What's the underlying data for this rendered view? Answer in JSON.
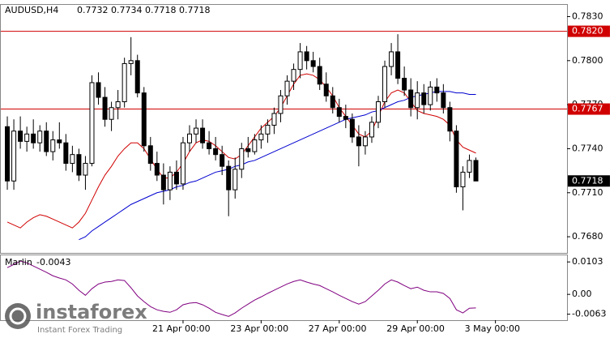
{
  "chart_data": [
    {
      "type": "candlestick",
      "title": "AUDUSD,H4",
      "ohlc": [
        [
          0.7755,
          0.7762,
          0.7712,
          0.7718
        ],
        [
          0.7718,
          0.776,
          0.7712,
          0.7752
        ],
        [
          0.7752,
          0.7762,
          0.774,
          0.7745
        ],
        [
          0.7745,
          0.7755,
          0.7738,
          0.775
        ],
        [
          0.775,
          0.776,
          0.774,
          0.7744
        ],
        [
          0.7744,
          0.7756,
          0.7738,
          0.7752
        ],
        [
          0.7752,
          0.7758,
          0.7735,
          0.7738
        ],
        [
          0.7738,
          0.7752,
          0.7732,
          0.7746
        ],
        [
          0.7746,
          0.7758,
          0.774,
          0.7744
        ],
        [
          0.7744,
          0.775,
          0.7725,
          0.773
        ],
        [
          0.773,
          0.7742,
          0.7724,
          0.7736
        ],
        [
          0.7736,
          0.774,
          0.7718,
          0.7722
        ],
        [
          0.7722,
          0.7735,
          0.7712,
          0.773
        ],
        [
          0.773,
          0.779,
          0.7728,
          0.7785
        ],
        [
          0.7785,
          0.7792,
          0.777,
          0.7775
        ],
        [
          0.7775,
          0.7782,
          0.7755,
          0.776
        ],
        [
          0.776,
          0.7772,
          0.7752,
          0.7768
        ],
        [
          0.7768,
          0.778,
          0.776,
          0.7772
        ],
        [
          0.7772,
          0.7802,
          0.7768,
          0.7798
        ],
        [
          0.7798,
          0.7816,
          0.779,
          0.78
        ],
        [
          0.78,
          0.7804,
          0.7775,
          0.7778
        ],
        [
          0.7778,
          0.7782,
          0.7738,
          0.7742
        ],
        [
          0.7742,
          0.7748,
          0.7725,
          0.773
        ],
        [
          0.773,
          0.7738,
          0.7718,
          0.7722
        ],
        [
          0.7722,
          0.773,
          0.7702,
          0.7712
        ],
        [
          0.7712,
          0.7728,
          0.7705,
          0.7724
        ],
        [
          0.7724,
          0.7732,
          0.7712,
          0.7716
        ],
        [
          0.7716,
          0.7748,
          0.7712,
          0.7744
        ],
        [
          0.7744,
          0.7756,
          0.7738,
          0.775
        ],
        [
          0.775,
          0.776,
          0.7744,
          0.7754
        ],
        [
          0.7754,
          0.776,
          0.774,
          0.7744
        ],
        [
          0.7744,
          0.7752,
          0.7736,
          0.774
        ],
        [
          0.774,
          0.7748,
          0.7732,
          0.7736
        ],
        [
          0.7736,
          0.7742,
          0.7722,
          0.7728
        ],
        [
          0.7728,
          0.7732,
          0.7694,
          0.7712
        ],
        [
          0.7712,
          0.7734,
          0.7706,
          0.7726
        ],
        [
          0.7726,
          0.7744,
          0.772,
          0.774
        ],
        [
          0.774,
          0.7748,
          0.7734,
          0.7738
        ],
        [
          0.7738,
          0.775,
          0.7736,
          0.7746
        ],
        [
          0.7746,
          0.7756,
          0.774,
          0.775
        ],
        [
          0.775,
          0.776,
          0.7744,
          0.7756
        ],
        [
          0.7756,
          0.7768,
          0.775,
          0.7764
        ],
        [
          0.7764,
          0.778,
          0.7758,
          0.7776
        ],
        [
          0.7776,
          0.779,
          0.777,
          0.7786
        ],
        [
          0.7786,
          0.7798,
          0.778,
          0.7794
        ],
        [
          0.7794,
          0.7812,
          0.7788,
          0.7806
        ],
        [
          0.7806,
          0.781,
          0.7794,
          0.78
        ],
        [
          0.78,
          0.7806,
          0.7792,
          0.7796
        ],
        [
          0.7796,
          0.7802,
          0.778,
          0.7784
        ],
        [
          0.7784,
          0.7792,
          0.7772,
          0.7776
        ],
        [
          0.7776,
          0.7782,
          0.7764,
          0.7768
        ],
        [
          0.7768,
          0.7774,
          0.7758,
          0.7762
        ],
        [
          0.7762,
          0.777,
          0.7754,
          0.776
        ],
        [
          0.776,
          0.7764,
          0.7744,
          0.7748
        ],
        [
          0.7748,
          0.7756,
          0.7728,
          0.7742
        ],
        [
          0.7742,
          0.7752,
          0.7736,
          0.7748
        ],
        [
          0.7748,
          0.7762,
          0.7744,
          0.7758
        ],
        [
          0.7758,
          0.7776,
          0.7754,
          0.7772
        ],
        [
          0.7772,
          0.78,
          0.7768,
          0.7796
        ],
        [
          0.7796,
          0.7812,
          0.779,
          0.7806
        ],
        [
          0.7806,
          0.7818,
          0.7784,
          0.7788
        ],
        [
          0.7788,
          0.7796,
          0.7776,
          0.778
        ],
        [
          0.778,
          0.7788,
          0.7762,
          0.7768
        ],
        [
          0.7768,
          0.7786,
          0.776,
          0.7778
        ],
        [
          0.7778,
          0.7784,
          0.7764,
          0.777
        ],
        [
          0.777,
          0.7786,
          0.7766,
          0.7782
        ],
        [
          0.7782,
          0.7788,
          0.7772,
          0.7778
        ],
        [
          0.7778,
          0.7784,
          0.7764,
          0.7768
        ],
        [
          0.7768,
          0.7772,
          0.7745,
          0.7752
        ],
        [
          0.7752,
          0.7756,
          0.771,
          0.7714
        ],
        [
          0.7714,
          0.7728,
          0.7698,
          0.7724
        ],
        [
          0.7724,
          0.7736,
          0.772,
          0.7732
        ],
        [
          0.7732,
          0.7734,
          0.7718,
          0.7718
        ]
      ],
      "lines": [
        {
          "color": "#d00000",
          "values": [
            0.769,
            0.7688,
            0.7686,
            0.769,
            0.7693,
            0.7695,
            0.7694,
            0.7692,
            0.769,
            0.7688,
            0.7686,
            0.769,
            0.7696,
            0.7705,
            0.7714,
            0.7722,
            0.7728,
            0.7735,
            0.774,
            0.7744,
            0.7744,
            0.774,
            0.7733,
            0.7726,
            0.772,
            0.772,
            0.7724,
            0.773,
            0.7738,
            0.7744,
            0.7746,
            0.7745,
            0.7742,
            0.7738,
            0.7734,
            0.7733,
            0.7736,
            0.7742,
            0.7748,
            0.7754,
            0.7758,
            0.7762,
            0.7768,
            0.7776,
            0.7784,
            0.779,
            0.7791,
            0.779,
            0.7787,
            0.7782,
            0.7776,
            0.7768,
            0.7762,
            0.7756,
            0.775,
            0.7748,
            0.7752,
            0.7762,
            0.7772,
            0.7778,
            0.778,
            0.7778,
            0.7772,
            0.7766,
            0.7764,
            0.7763,
            0.7762,
            0.776,
            0.7756,
            0.7746,
            0.7741,
            0.7739,
            0.7737
          ]
        },
        {
          "color": "#0000d0",
          "values": [
            null,
            null,
            null,
            null,
            null,
            null,
            null,
            null,
            null,
            null,
            null,
            0.7678,
            0.768,
            0.7684,
            0.7687,
            0.769,
            0.7693,
            0.7696,
            0.7699,
            0.7702,
            0.7704,
            0.7706,
            0.7708,
            0.771,
            0.7711,
            0.7712,
            0.7714,
            0.7715,
            0.7717,
            0.7718,
            0.772,
            0.7722,
            0.7724,
            0.7725,
            0.7726,
            0.7728,
            0.7729,
            0.7731,
            0.7732,
            0.7734,
            0.7736,
            0.7738,
            0.774,
            0.7742,
            0.7744,
            0.7746,
            0.7748,
            0.775,
            0.7752,
            0.7754,
            0.7756,
            0.7758,
            0.776,
            0.7761,
            0.7762,
            0.7763,
            0.7765,
            0.7766,
            0.7768,
            0.777,
            0.7772,
            0.7773,
            0.7775,
            0.7776,
            0.7777,
            0.7778,
            0.7779,
            0.7779,
            0.7779,
            0.7778,
            0.7778,
            0.7777,
            0.7777
          ]
        }
      ],
      "levels": [
        {
          "value": 0.782,
          "label": "0.7820"
        },
        {
          "value": 0.7767,
          "label": "0.7767"
        }
      ],
      "level_color": "#d00000",
      "current_price": {
        "value": 0.7718,
        "label": "0.7718"
      },
      "ylim": [
        0.7669,
        0.7838
      ],
      "yticks": [
        {
          "value": 0.783,
          "label": "0.7830"
        },
        {
          "value": 0.78,
          "label": "0.7800"
        },
        {
          "value": 0.777,
          "label": "0.7770"
        },
        {
          "value": 0.774,
          "label": "0.7740"
        },
        {
          "value": 0.771,
          "label": "0.7710"
        },
        {
          "value": 0.768,
          "label": "0.7680"
        }
      ],
      "xlim": [
        -1,
        86
      ],
      "xticks": [
        {
          "value": 27,
          "label": "21 Apr 00:00"
        },
        {
          "value": 39,
          "label": "23 Apr 00:00"
        },
        {
          "value": 51,
          "label": "27 Apr 00:00"
        },
        {
          "value": 63,
          "label": "29 Apr 00:00"
        },
        {
          "value": 75,
          "label": "3 May 00:00"
        }
      ]
    },
    {
      "type": "line",
      "title": "Marlin",
      "current_value": -0.0043,
      "color": "#800080",
      "values": [
        0.0085,
        0.0095,
        0.0106,
        0.01,
        0.009,
        0.008,
        0.007,
        0.0059,
        0.0052,
        0.0046,
        0.0033,
        0.0013,
        -0.0003,
        0.0018,
        0.0033,
        0.0039,
        0.0041,
        0.0046,
        0.0044,
        0.0021,
        -0.0005,
        -0.0023,
        -0.0039,
        -0.0049,
        -0.0054,
        -0.0057,
        -0.0049,
        -0.0033,
        -0.0028,
        -0.0026,
        -0.0033,
        -0.0044,
        -0.0057,
        -0.0064,
        -0.007,
        -0.0059,
        -0.0044,
        -0.0031,
        -0.0018,
        -0.0008,
        0.0003,
        0.0013,
        0.0023,
        0.0033,
        0.0041,
        0.0046,
        0.0039,
        0.0033,
        0.0028,
        0.0018,
        0.0008,
        -0.0003,
        -0.0013,
        -0.0023,
        -0.0031,
        -0.0023,
        -0.0005,
        0.0013,
        0.0033,
        0.0046,
        0.0039,
        0.0028,
        0.0018,
        0.0023,
        0.0013,
        0.0008,
        0.0008,
        0.0003,
        -0.0013,
        -0.0049,
        -0.0059,
        -0.0044,
        -0.0043
      ],
      "ylim": [
        -0.0082,
        0.0124
      ],
      "yticks": [
        0.0103,
        {
          "value": 0,
          "label": "0.00"
        },
        -0.0063
      ]
    }
  ],
  "watermark": {
    "name": "instaforex",
    "tagline": "Instant Forex Trading"
  }
}
